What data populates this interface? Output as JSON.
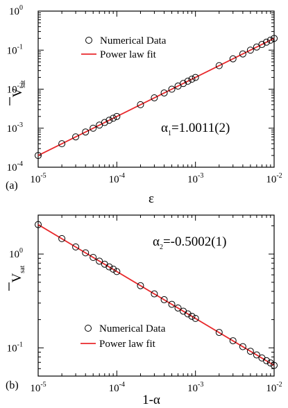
{
  "chart_data": [
    {
      "type": "scatter",
      "panel_label": "(a)",
      "xscale": "log",
      "yscale": "log",
      "xlim": [
        1e-05,
        0.01
      ],
      "ylim": [
        0.0001,
        1
      ],
      "xlabel": "ε",
      "ylabel": {
        "base": "V",
        "overline": true,
        "sub": "sat"
      },
      "x_ticks": [
        "10",
        "10",
        "10",
        "10"
      ],
      "x_tick_exps": [
        "-5",
        "-4",
        "-3",
        "-2"
      ],
      "y_ticks": [
        "10",
        "10",
        "10",
        "10",
        "10"
      ],
      "y_tick_exps": [
        "-4",
        "-3",
        "-2",
        "-1",
        "0"
      ],
      "legend": {
        "position": "top-left",
        "entries": [
          "Numerical Data",
          "Power law fit"
        ]
      },
      "annotation": {
        "greek": "α",
        "sub": "1",
        "rest": "=1.0011(2)"
      },
      "fit": {
        "color": "#e8282b",
        "exponent": 1.0011,
        "x": [
          1e-05,
          0.01
        ],
        "y": [
          0.0002,
          0.2
        ]
      },
      "series": [
        {
          "name": "Numerical Data",
          "marker": "open-circle",
          "x": [
            1e-05,
            2e-05,
            3e-05,
            4e-05,
            5e-05,
            6e-05,
            7e-05,
            8e-05,
            9e-05,
            0.0001,
            0.0002,
            0.0003,
            0.0004,
            0.0005,
            0.0006,
            0.0007,
            0.0008,
            0.0009,
            0.001,
            0.002,
            0.003,
            0.004,
            0.005,
            0.006,
            0.007,
            0.008,
            0.009,
            0.01
          ],
          "y": [
            0.0002,
            0.0004,
            0.0006,
            0.0008,
            0.001,
            0.0012,
            0.0014,
            0.0016,
            0.0018,
            0.002,
            0.004,
            0.006,
            0.008,
            0.01,
            0.012,
            0.014,
            0.016,
            0.018,
            0.02,
            0.04,
            0.06,
            0.08,
            0.1,
            0.12,
            0.14,
            0.16,
            0.18,
            0.2
          ]
        }
      ]
    },
    {
      "type": "scatter",
      "panel_label": "(b)",
      "xscale": "log",
      "yscale": "log",
      "xlim": [
        1e-05,
        0.01
      ],
      "ylim": [
        0.05,
        2.6
      ],
      "xlabel": "1-α",
      "ylabel": {
        "base": "V",
        "overline": true,
        "sub": "sat"
      },
      "x_ticks": [
        "10",
        "10",
        "10",
        "10"
      ],
      "x_tick_exps": [
        "-5",
        "-4",
        "-3",
        "-2"
      ],
      "y_ticks": [
        "10",
        "10"
      ],
      "y_tick_exps": [
        "-1",
        "0"
      ],
      "legend": {
        "position": "bottom-left",
        "entries": [
          "Numerical Data",
          "Power law fit"
        ]
      },
      "annotation": {
        "greek": "α",
        "sub": "2",
        "rest": "=-0.5002(1)"
      },
      "fit": {
        "color": "#e8282b",
        "exponent": -0.5002,
        "x": [
          1e-05,
          0.01
        ],
        "y": [
          2.06,
          0.065
        ]
      },
      "series": [
        {
          "name": "Numerical Data",
          "marker": "open-circle",
          "x": [
            1e-05,
            2e-05,
            3e-05,
            4e-05,
            5e-05,
            6e-05,
            7e-05,
            8e-05,
            9e-05,
            0.0001,
            0.0002,
            0.0003,
            0.0004,
            0.0005,
            0.0006,
            0.0007,
            0.0008,
            0.0009,
            0.001,
            0.002,
            0.003,
            0.004,
            0.005,
            0.006,
            0.007,
            0.008,
            0.009,
            0.01
          ],
          "y": [
            2.06,
            1.46,
            1.19,
            1.03,
            0.92,
            0.84,
            0.78,
            0.73,
            0.69,
            0.65,
            0.46,
            0.376,
            0.326,
            0.291,
            0.266,
            0.246,
            0.23,
            0.217,
            0.206,
            0.146,
            0.119,
            0.103,
            0.092,
            0.084,
            0.078,
            0.073,
            0.069,
            0.065
          ]
        }
      ]
    }
  ]
}
